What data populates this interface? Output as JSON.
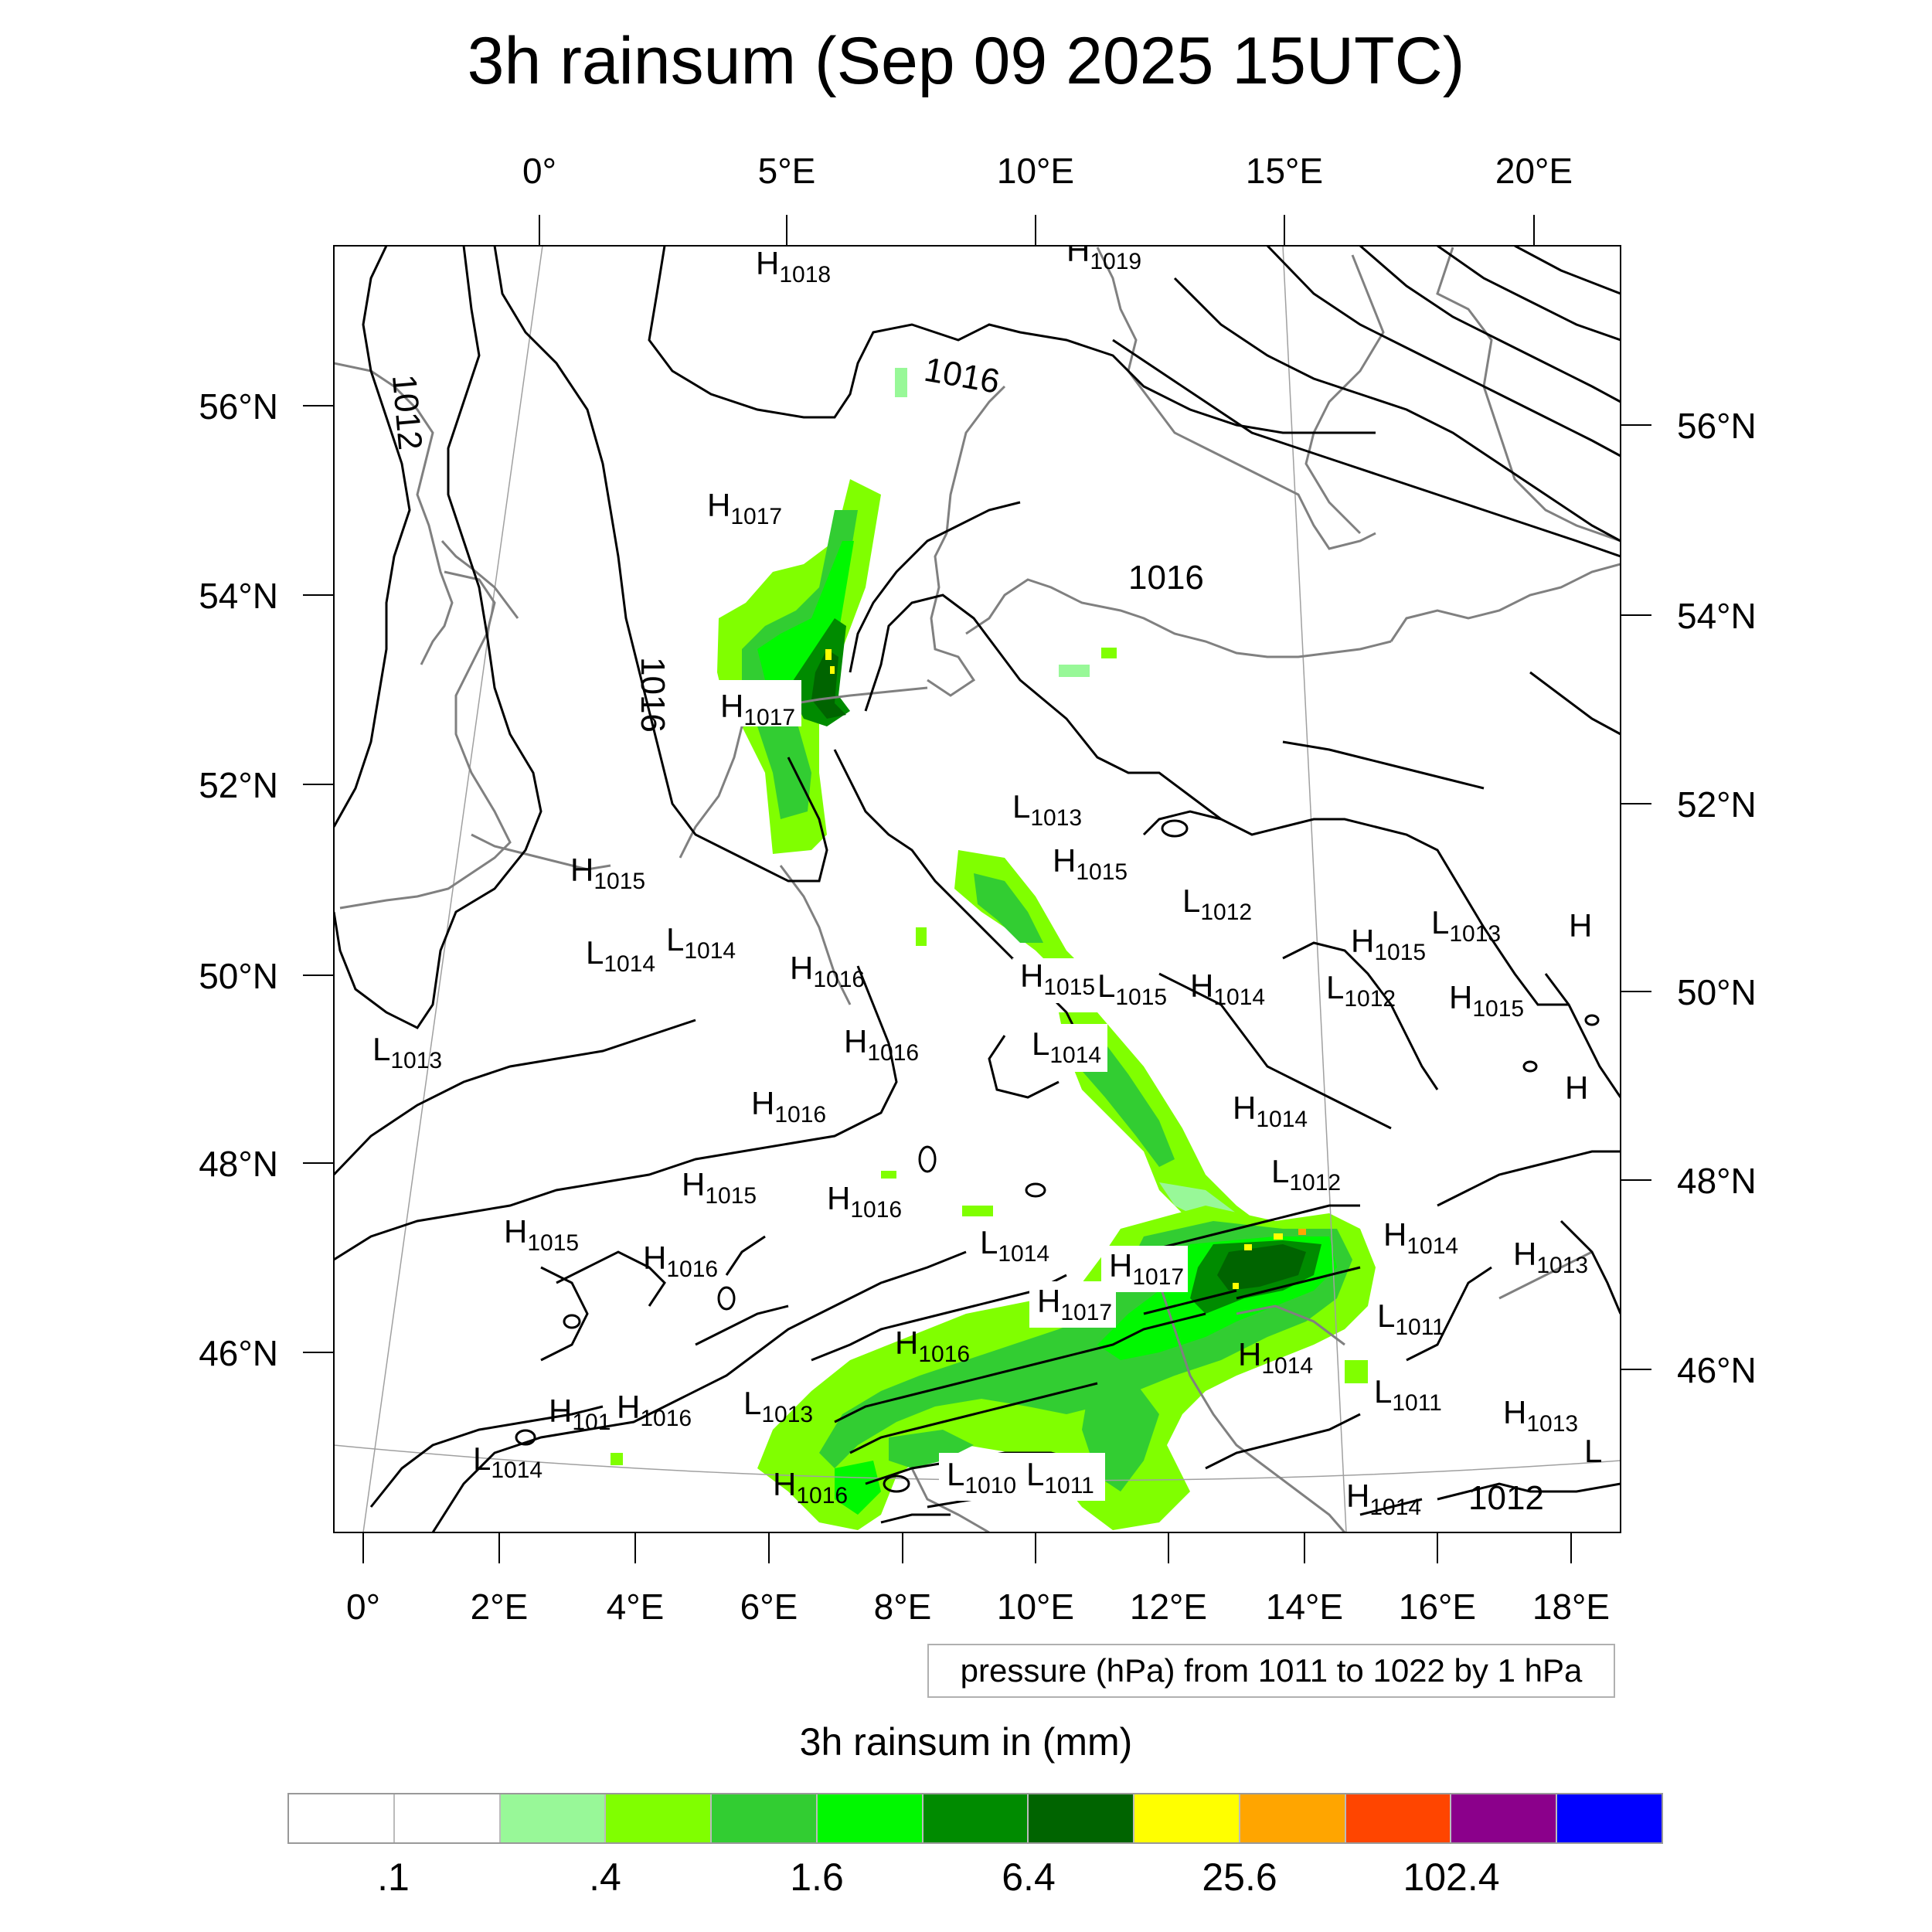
{
  "title": "3h rainsum (Sep 09 2025 15UTC)",
  "top_lon_labels": [
    "0°",
    "5°E",
    "10°E",
    "15°E",
    "20°E"
  ],
  "bottom_lon_labels": [
    "0°",
    "2°E",
    "4°E",
    "6°E",
    "8°E",
    "10°E",
    "12°E",
    "14°E",
    "16°E",
    "18°E"
  ],
  "left_lat_labels": [
    "56°N",
    "54°N",
    "52°N",
    "50°N",
    "48°N",
    "46°N"
  ],
  "right_lat_labels": [
    "56°N",
    "54°N",
    "52°N",
    "50°N",
    "48°N",
    "46°N"
  ],
  "contour_labels": [
    "1016",
    "1012",
    "1016",
    "1016",
    "1012"
  ],
  "pressure_centers": [
    {
      "type": "H",
      "value": "1018"
    },
    {
      "type": "H",
      "value": "1019"
    },
    {
      "type": "H",
      "value": "1017"
    },
    {
      "type": "H",
      "value": "1017"
    },
    {
      "type": "L",
      "value": "1013"
    },
    {
      "type": "H",
      "value": "1015"
    },
    {
      "type": "H",
      "value": "1015"
    },
    {
      "type": "L",
      "value": "1012"
    },
    {
      "type": "L",
      "value": "1014"
    },
    {
      "type": "L",
      "value": "1014"
    },
    {
      "type": "H",
      "value": "1016"
    },
    {
      "type": "H",
      "value": "1015"
    },
    {
      "type": "L",
      "value": "1015"
    },
    {
      "type": "H",
      "value": "1014"
    },
    {
      "type": "H",
      "value": "1015"
    },
    {
      "type": "L",
      "value": "1013"
    },
    {
      "type": "L",
      "value": "1012"
    },
    {
      "type": "H",
      "value": "1015"
    },
    {
      "type": "L",
      "value": "1013"
    },
    {
      "type": "H",
      "value": "1016"
    },
    {
      "type": "L",
      "value": "1014"
    },
    {
      "type": "H",
      "value": "1016"
    },
    {
      "type": "H",
      "value": "1014"
    },
    {
      "type": "L",
      "value": "1012"
    },
    {
      "type": "H",
      "value": "1015"
    },
    {
      "type": "H",
      "value": "1016"
    },
    {
      "type": "H",
      "value": "1015"
    },
    {
      "type": "H",
      "value": "1016"
    },
    {
      "type": "L",
      "value": "1014"
    },
    {
      "type": "H",
      "value": "1017"
    },
    {
      "type": "H",
      "value": "1017"
    },
    {
      "type": "H",
      "value": "1014"
    },
    {
      "type": "H",
      "value": "1013"
    },
    {
      "type": "L",
      "value": "1011"
    },
    {
      "type": "H",
      "value": "1016"
    },
    {
      "type": "H",
      "value": "1014"
    },
    {
      "type": "L",
      "value": "1011"
    },
    {
      "type": "H",
      "value": "101"
    },
    {
      "type": "H",
      "value": "1016"
    },
    {
      "type": "L",
      "value": "1013"
    },
    {
      "type": "H",
      "value": "1013"
    },
    {
      "type": "L",
      "value": "1014"
    },
    {
      "type": "H",
      "value": "1016"
    },
    {
      "type": "L",
      "value": "1010"
    },
    {
      "type": "L",
      "value": "1011"
    },
    {
      "type": "H",
      "value": "1014"
    }
  ],
  "info_box": "pressure (hPa) from 1011 to 1022 by 1 hPa",
  "colorbar": {
    "title": "3h rainsum in (mm)",
    "colors": [
      "#ffffff",
      "#ffffff",
      "#98f898",
      "#80ff00",
      "#32cd32",
      "#00f800",
      "#008b00",
      "#006400",
      "#ffff00",
      "#ffa500",
      "#ff4500",
      "#8b008b",
      "#0000ff"
    ],
    "labels": [
      ".1",
      ".4",
      "1.6",
      "6.4",
      "25.6",
      "102.4"
    ]
  },
  "colors": {
    "coastline": "#808080",
    "isobar": "#000000",
    "gridline": "#a0a0a0"
  }
}
